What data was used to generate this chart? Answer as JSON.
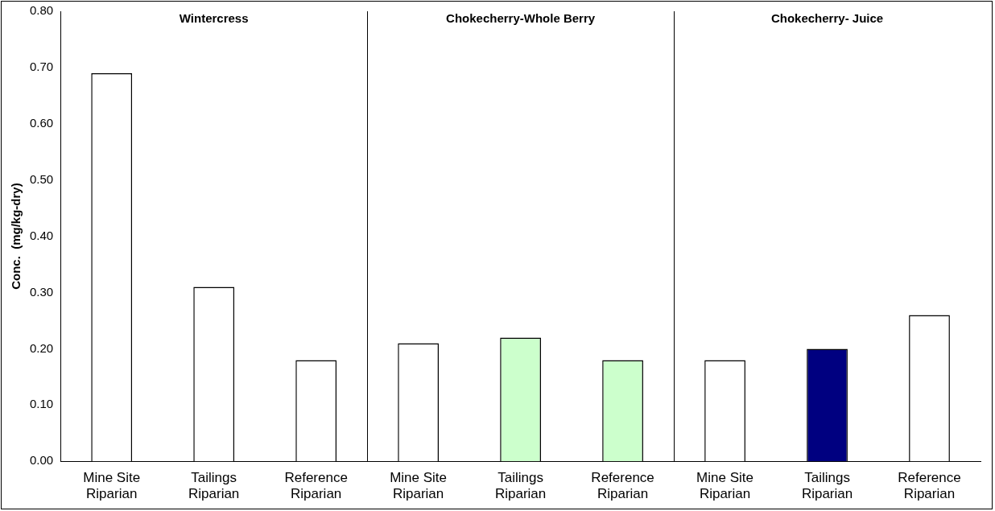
{
  "chart_data": {
    "type": "bar",
    "ylabel": "Conc.  (mg/kg-dry)",
    "categories": [
      "Mine Site Riparian",
      "Tailings Riparian",
      "Reference Riparian",
      "Mine Site Riparian",
      "Tailings Riparian",
      "Reference Riparian",
      "Mine Site Riparian",
      "Tailings Riparian",
      "Reference Riparian"
    ],
    "values": [
      0.69,
      0.31,
      0.18,
      0.21,
      0.22,
      0.18,
      0.18,
      0.2,
      0.26
    ],
    "colors": [
      "#ffffff",
      "#ffffff",
      "#ffffff",
      "#ffffff",
      "#ccffcc",
      "#ccffcc",
      "#ffffff",
      "#000080",
      "#ffffff"
    ],
    "ylim": [
      0,
      0.8
    ],
    "yticks": [
      {
        "value": 0,
        "label": "0.00"
      },
      {
        "value": 0.1,
        "label": "0.10"
      },
      {
        "value": 0.2,
        "label": "0.20"
      },
      {
        "value": 0.3,
        "label": "0.30"
      },
      {
        "value": 0.4,
        "label": "0.40"
      },
      {
        "value": 0.5,
        "label": "0.50"
      },
      {
        "value": 0.6,
        "label": "0.60"
      },
      {
        "value": 0.7,
        "label": "0.70"
      },
      {
        "value": 0.8,
        "label": "0.80"
      }
    ],
    "annotations": [
      "Wintercress",
      "Chokecherry-Whole Berry",
      "Chokecherry- Juice"
    ],
    "grid": false,
    "legend": false
  }
}
